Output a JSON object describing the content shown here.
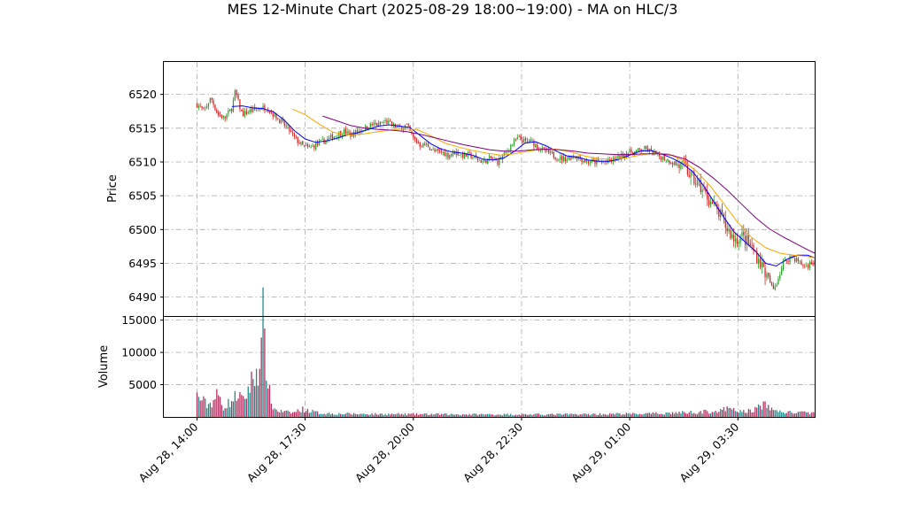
{
  "chart_data": {
    "type": "candlestick",
    "title": "MES 12-Minute Chart (2025-08-29 18:00~19:00) - MA on HLC/3",
    "price_panel": {
      "ylabel": "Price",
      "ylim": [
        6487.2,
        6524.8
      ],
      "yticks": [
        6490,
        6495,
        6500,
        6505,
        6510,
        6515,
        6520
      ],
      "grid": true
    },
    "volume_panel": {
      "ylabel": "Volume",
      "ylim": [
        0,
        15500
      ],
      "yticks": [
        5000,
        10000,
        15000
      ],
      "grid": true
    },
    "x_range": [
      -19,
      354
    ],
    "x_ticks": [
      {
        "index": 0,
        "label": "Aug 28, 14:00"
      },
      {
        "index": 62,
        "label": "Aug 28, 17:30"
      },
      {
        "index": 124,
        "label": "Aug 28, 20:00"
      },
      {
        "index": 186,
        "label": "Aug 28, 22:30"
      },
      {
        "index": 248,
        "label": "Aug 29, 01:00"
      },
      {
        "index": 310,
        "label": "Aug 29, 03:30"
      }
    ],
    "bar_count": 375,
    "up_color": "#2ca02c",
    "down_color": "#d62728",
    "volume_up_color": "#1f8a8a",
    "volume_down_color": "#b03060",
    "close_anchors": [
      [
        0,
        6518.5
      ],
      [
        4,
        6517.5
      ],
      [
        8,
        6519.5
      ],
      [
        12,
        6517.0
      ],
      [
        16,
        6516.5
      ],
      [
        20,
        6518.0
      ],
      [
        22,
        6520.5
      ],
      [
        24,
        6518.5
      ],
      [
        26,
        6517.0
      ],
      [
        30,
        6517.5
      ],
      [
        36,
        6518.0
      ],
      [
        40,
        6518.0
      ],
      [
        44,
        6517.0
      ],
      [
        48,
        6516.0
      ],
      [
        52,
        6515.0
      ],
      [
        56,
        6513.5
      ],
      [
        60,
        6512.5
      ],
      [
        64,
        6512.0
      ],
      [
        68,
        6512.5
      ],
      [
        72,
        6513.0
      ],
      [
        76,
        6513.5
      ],
      [
        80,
        6514.0
      ],
      [
        84,
        6514.5
      ],
      [
        88,
        6514.0
      ],
      [
        92,
        6514.5
      ],
      [
        96,
        6515.0
      ],
      [
        100,
        6515.5
      ],
      [
        104,
        6515.5
      ],
      [
        108,
        6516.0
      ],
      [
        112,
        6515.5
      ],
      [
        116,
        6515.0
      ],
      [
        120,
        6515.5
      ],
      [
        124,
        6513.5
      ],
      [
        128,
        6512.5
      ],
      [
        132,
        6512.5
      ],
      [
        136,
        6511.5
      ],
      [
        140,
        6511.5
      ],
      [
        144,
        6511.0
      ],
      [
        148,
        6511.5
      ],
      [
        152,
        6511.0
      ],
      [
        156,
        6511.0
      ],
      [
        160,
        6510.5
      ],
      [
        164,
        6510.0
      ],
      [
        168,
        6510.5
      ],
      [
        172,
        6510.0
      ],
      [
        176,
        6511.0
      ],
      [
        180,
        6512.5
      ],
      [
        184,
        6513.5
      ],
      [
        188,
        6513.0
      ],
      [
        192,
        6513.0
      ],
      [
        196,
        6512.0
      ],
      [
        200,
        6511.5
      ],
      [
        204,
        6511.0
      ],
      [
        208,
        6510.5
      ],
      [
        212,
        6510.5
      ],
      [
        216,
        6511.0
      ],
      [
        220,
        6510.5
      ],
      [
        224,
        6510.0
      ],
      [
        228,
        6510.0
      ],
      [
        232,
        6510.0
      ],
      [
        236,
        6510.0
      ],
      [
        240,
        6510.5
      ],
      [
        244,
        6511.0
      ],
      [
        248,
        6511.5
      ],
      [
        252,
        6511.5
      ],
      [
        256,
        6512.0
      ],
      [
        260,
        6511.5
      ],
      [
        264,
        6511.0
      ],
      [
        268,
        6510.5
      ],
      [
        272,
        6510.0
      ],
      [
        276,
        6509.5
      ],
      [
        280,
        6509.0
      ],
      [
        284,
        6507.5
      ],
      [
        288,
        6506.5
      ],
      [
        292,
        6505.0
      ],
      [
        296,
        6503.5
      ],
      [
        300,
        6502.0
      ],
      [
        304,
        6500.0
      ],
      [
        308,
        6498.5
      ],
      [
        312,
        6499.0
      ],
      [
        316,
        6498.0
      ],
      [
        320,
        6496.5
      ],
      [
        324,
        6494.5
      ],
      [
        328,
        6492.5
      ],
      [
        330,
        6491.0
      ],
      [
        332,
        6492.0
      ],
      [
        334,
        6493.5
      ],
      [
        336,
        6495.0
      ],
      [
        340,
        6496.0
      ],
      [
        344,
        6495.5
      ],
      [
        348,
        6494.5
      ],
      [
        352,
        6495.0
      ],
      [
        354,
        6495.0
      ]
    ],
    "volume_anchors": [
      [
        0,
        3200
      ],
      [
        3,
        2600
      ],
      [
        6,
        1800
      ],
      [
        9,
        2400
      ],
      [
        12,
        3500
      ],
      [
        15,
        1500
      ],
      [
        18,
        2100
      ],
      [
        21,
        2700
      ],
      [
        24,
        3800
      ],
      [
        26,
        2200
      ],
      [
        28,
        3300
      ],
      [
        30,
        4800
      ],
      [
        33,
        6300
      ],
      [
        35,
        7800
      ],
      [
        37,
        10200
      ],
      [
        38,
        15400
      ],
      [
        39,
        9200
      ],
      [
        40,
        8200
      ],
      [
        42,
        2600
      ],
      [
        44,
        1300
      ],
      [
        47,
        900
      ],
      [
        50,
        800
      ],
      [
        55,
        650
      ],
      [
        60,
        1200
      ],
      [
        64,
        1000
      ],
      [
        70,
        600
      ],
      [
        80,
        500
      ],
      [
        100,
        450
      ],
      [
        150,
        400
      ],
      [
        200,
        380
      ],
      [
        260,
        500
      ],
      [
        300,
        900
      ],
      [
        304,
        1300
      ],
      [
        308,
        1000
      ],
      [
        314,
        800
      ],
      [
        320,
        1200
      ],
      [
        324,
        1900
      ],
      [
        328,
        1500
      ],
      [
        332,
        900
      ],
      [
        340,
        700
      ],
      [
        354,
        600
      ]
    ],
    "moving_averages": [
      {
        "color": "#0000ff",
        "start": 20,
        "points": [
          [
            20,
            6518.2
          ],
          [
            26,
            6518.3
          ],
          [
            32,
            6518.0
          ],
          [
            38,
            6517.9
          ],
          [
            44,
            6517.4
          ],
          [
            50,
            6516.2
          ],
          [
            56,
            6514.6
          ],
          [
            62,
            6513.4
          ],
          [
            68,
            6512.9
          ],
          [
            74,
            6513.1
          ],
          [
            80,
            6513.5
          ],
          [
            86,
            6514.0
          ],
          [
            92,
            6514.3
          ],
          [
            98,
            6514.8
          ],
          [
            104,
            6515.3
          ],
          [
            110,
            6515.5
          ],
          [
            116,
            6515.3
          ],
          [
            122,
            6515.1
          ],
          [
            128,
            6513.9
          ],
          [
            134,
            6512.7
          ],
          [
            140,
            6511.9
          ],
          [
            146,
            6511.5
          ],
          [
            152,
            6511.3
          ],
          [
            158,
            6511.0
          ],
          [
            164,
            6510.4
          ],
          [
            170,
            6510.3
          ],
          [
            176,
            6510.6
          ],
          [
            182,
            6511.6
          ],
          [
            188,
            6512.8
          ],
          [
            194,
            6513.0
          ],
          [
            200,
            6512.4
          ],
          [
            206,
            6511.6
          ],
          [
            212,
            6510.9
          ],
          [
            218,
            6510.7
          ],
          [
            224,
            6510.3
          ],
          [
            230,
            6510.1
          ],
          [
            236,
            6510.1
          ],
          [
            242,
            6510.4
          ],
          [
            248,
            6511.0
          ],
          [
            254,
            6511.6
          ],
          [
            260,
            6511.7
          ],
          [
            266,
            6511.2
          ],
          [
            272,
            6510.6
          ],
          [
            278,
            6509.8
          ],
          [
            284,
            6508.6
          ],
          [
            290,
            6506.6
          ],
          [
            296,
            6504.2
          ],
          [
            302,
            6501.8
          ],
          [
            308,
            6499.6
          ],
          [
            314,
            6498.2
          ],
          [
            320,
            6496.8
          ],
          [
            326,
            6495.0
          ],
          [
            332,
            6494.6
          ],
          [
            338,
            6495.6
          ],
          [
            344,
            6496.2
          ],
          [
            350,
            6496.2
          ],
          [
            354,
            6495.8
          ]
        ]
      },
      {
        "color": "#ffa500",
        "start": 55,
        "points": [
          [
            55,
            6517.8
          ],
          [
            62,
            6517.0
          ],
          [
            70,
            6515.6
          ],
          [
            78,
            6514.4
          ],
          [
            86,
            6514.0
          ],
          [
            94,
            6514.1
          ],
          [
            102,
            6514.4
          ],
          [
            110,
            6514.7
          ],
          [
            118,
            6514.9
          ],
          [
            126,
            6514.8
          ],
          [
            134,
            6513.9
          ],
          [
            142,
            6512.8
          ],
          [
            150,
            6512.2
          ],
          [
            158,
            6511.7
          ],
          [
            166,
            6511.3
          ],
          [
            174,
            6511.0
          ],
          [
            182,
            6511.2
          ],
          [
            190,
            6511.6
          ],
          [
            198,
            6511.9
          ],
          [
            206,
            6511.9
          ],
          [
            214,
            6511.5
          ],
          [
            222,
            6510.9
          ],
          [
            230,
            6510.5
          ],
          [
            238,
            6510.4
          ],
          [
            246,
            6510.6
          ],
          [
            254,
            6511.0
          ],
          [
            262,
            6511.3
          ],
          [
            270,
            6511.2
          ],
          [
            278,
            6510.3
          ],
          [
            286,
            6508.7
          ],
          [
            294,
            6506.5
          ],
          [
            302,
            6503.8
          ],
          [
            310,
            6501.0
          ],
          [
            318,
            6498.8
          ],
          [
            326,
            6497.3
          ],
          [
            334,
            6496.5
          ],
          [
            342,
            6496.2
          ],
          [
            350,
            6496.0
          ],
          [
            354,
            6495.8
          ]
        ]
      },
      {
        "color": "#800080",
        "start": 72,
        "points": [
          [
            72,
            6516.8
          ],
          [
            80,
            6516.1
          ],
          [
            88,
            6515.4
          ],
          [
            96,
            6515.0
          ],
          [
            104,
            6514.8
          ],
          [
            112,
            6514.7
          ],
          [
            120,
            6514.5
          ],
          [
            128,
            6514.1
          ],
          [
            136,
            6513.6
          ],
          [
            144,
            6513.1
          ],
          [
            152,
            6512.6
          ],
          [
            160,
            6512.2
          ],
          [
            168,
            6511.8
          ],
          [
            176,
            6511.6
          ],
          [
            184,
            6511.6
          ],
          [
            192,
            6511.8
          ],
          [
            200,
            6511.9
          ],
          [
            208,
            6511.8
          ],
          [
            216,
            6511.6
          ],
          [
            224,
            6511.3
          ],
          [
            232,
            6511.2
          ],
          [
            240,
            6511.1
          ],
          [
            248,
            6511.1
          ],
          [
            256,
            6511.2
          ],
          [
            264,
            6511.2
          ],
          [
            272,
            6511.0
          ],
          [
            280,
            6510.4
          ],
          [
            288,
            6509.2
          ],
          [
            296,
            6507.6
          ],
          [
            304,
            6505.8
          ],
          [
            312,
            6503.8
          ],
          [
            320,
            6501.8
          ],
          [
            328,
            6500.1
          ],
          [
            336,
            6498.9
          ],
          [
            344,
            6497.8
          ],
          [
            350,
            6497.0
          ],
          [
            354,
            6496.5
          ]
        ]
      }
    ]
  }
}
